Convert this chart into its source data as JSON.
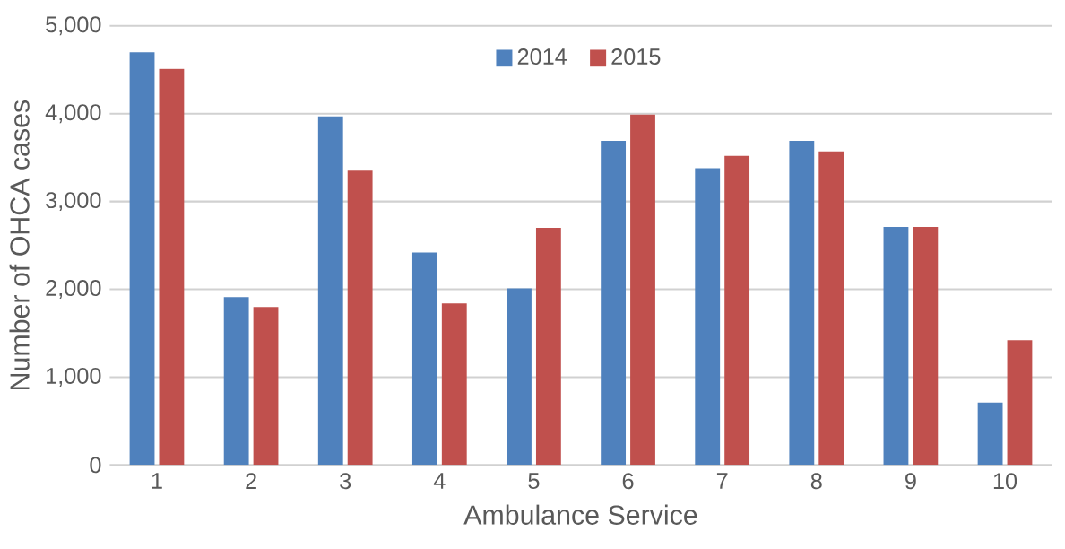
{
  "chart_data": {
    "type": "bar",
    "xlabel": "Ambulance Service",
    "ylabel": "Number of OHCA cases",
    "categories": [
      "1",
      "2",
      "3",
      "4",
      "5",
      "6",
      "7",
      "8",
      "9",
      "10"
    ],
    "series": [
      {
        "name": "2014",
        "color": "#4f81bd",
        "values": [
          4700,
          1910,
          3970,
          2420,
          2010,
          3690,
          3380,
          3690,
          2710,
          710
        ]
      },
      {
        "name": "2015",
        "color": "#c0504d",
        "values": [
          4510,
          1800,
          3350,
          1840,
          2700,
          3990,
          3520,
          3570,
          2710,
          1420
        ]
      }
    ],
    "ylim": [
      0,
      5000
    ],
    "yticks": [
      {
        "value": 0,
        "label": "0"
      },
      {
        "value": 1000,
        "label": "1,000"
      },
      {
        "value": 2000,
        "label": "2,000"
      },
      {
        "value": 3000,
        "label": "3,000"
      },
      {
        "value": 4000,
        "label": "4,000"
      },
      {
        "value": 5000,
        "label": "5,000"
      }
    ],
    "grid": "y",
    "legend": "top"
  }
}
